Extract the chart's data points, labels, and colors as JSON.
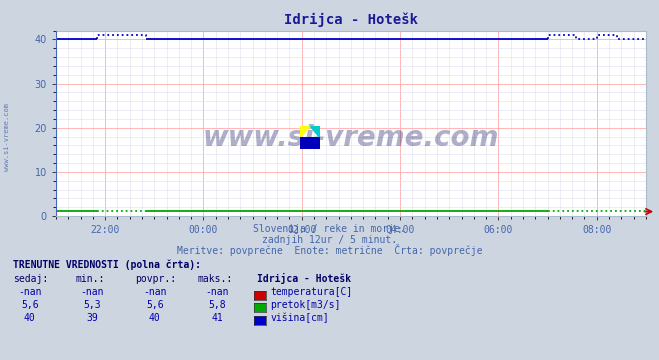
{
  "title": "Idrijca - Hotešk",
  "bg_color": "#cdd5e0",
  "plot_bg_color": "#ffffff",
  "xlim": [
    0,
    144
  ],
  "ylim": [
    0,
    42
  ],
  "yticks": [
    0,
    10,
    20,
    30,
    40
  ],
  "xtick_labels": [
    "22:00",
    "00:00",
    "02:00",
    "04:00",
    "06:00",
    "08:00"
  ],
  "xtick_positions": [
    12,
    36,
    60,
    84,
    108,
    132
  ],
  "subtitle_lines": [
    "Slovenija / reke in morje.",
    "zadnjih 12ur / 5 minut.",
    "Meritve: povprečne  Enote: metrične  Črta: povprečje"
  ],
  "table_header": "TRENUTNE VREDNOSTI (polna črta):",
  "col_headers": [
    "sedaj:",
    "min.:",
    "povpr.:",
    "maks.:",
    "Idrijca - Hotešk"
  ],
  "row1": [
    "-nan",
    "-nan",
    "-nan",
    "-nan",
    "temperatura[C]"
  ],
  "row2": [
    "5,6",
    "5,3",
    "5,6",
    "5,8",
    "pretok[m3/s]"
  ],
  "row3": [
    "40",
    "39",
    "40",
    "41",
    "višina[cm]"
  ],
  "color_temp": "#cc0000",
  "color_pretok": "#00aa00",
  "color_visina": "#0000cc",
  "watermark_text": "www.si-vreme.com",
  "watermark_color": "#1a1a66",
  "watermark_alpha": 0.35,
  "sidebar_text": "www.si-vreme.com",
  "sidebar_color": "#4466aa",
  "arrow_color": "#cc0000",
  "spine_color": "#aabbcc",
  "grid_major_color": "#ffaaaa",
  "grid_minor_color": "#ddddee",
  "tick_color": "#4466aa",
  "subtitle_color": "#4466aa",
  "table_color": "#0000aa",
  "table_bold_color": "#000066"
}
